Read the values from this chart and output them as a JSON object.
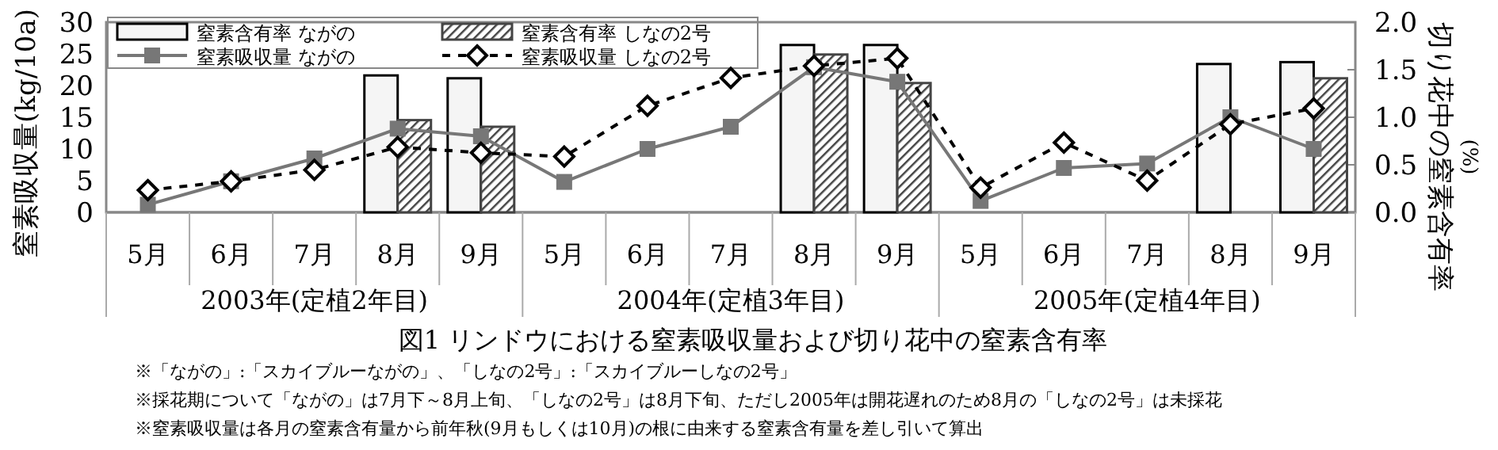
{
  "chart_data": {
    "type": "bar",
    "title": "図1 リンドウにおける窒素吸収量および切り花中の窒素含有率",
    "ylabel": "窒素吸収量(kg/10a)",
    "y2label": "切り花中の窒素含有率\n(%)",
    "categories": [
      "5月",
      "6月",
      "7月",
      "8月",
      "9月",
      "5月",
      "6月",
      "7月",
      "8月",
      "9月",
      "5月",
      "6月",
      "7月",
      "8月",
      "9月"
    ],
    "annotations": [
      "2003年(定植2年目)",
      "2004年(定植3年目)",
      "2005年(定植4年目)",
      "※「ながの」:「スカイブルーながの」、「しなの2号」:「スカイブルーしなの2号」",
      "※採花期について「ながの」は7月下～8月上旬、「しなの2号」は8月下旬、ただし2005年は開花遅れのため8月の「しなの2号」は未採花",
      "※窒素吸収量は各月の窒素含有量から前年秋(9月もしくは10月)の根に由来する窒素含有量を差し引いて算出"
    ],
    "series": [
      {
        "name": "窒素含有率 ながの",
        "axis": "y2",
        "color": "#f5f5f5",
        "values": [
          null,
          null,
          null,
          1.44,
          1.41,
          null,
          null,
          null,
          1.76,
          1.76,
          null,
          null,
          null,
          1.56,
          1.58
        ]
      },
      {
        "name": "窒素含有率 しなの2号",
        "axis": "y2",
        "color": "#444444",
        "values": [
          null,
          null,
          null,
          0.97,
          0.9,
          null,
          null,
          null,
          1.66,
          1.36,
          null,
          null,
          null,
          null,
          1.41
        ]
      },
      {
        "name": "窒素吸収量 ながの",
        "type": "line",
        "color": "#777777",
        "marker": "square",
        "line_style": "solid",
        "values": [
          1.2,
          4.9,
          8.5,
          13.2,
          12.0,
          4.8,
          10,
          13.5,
          22.9,
          20.6,
          1.8,
          7.0,
          7.7,
          15,
          10
        ]
      },
      {
        "name": "窒素吸収量 しなの2号",
        "type": "line",
        "color": "#000000",
        "marker": "diamond",
        "line_style": "dashed",
        "values": [
          3.5,
          4.9,
          6.7,
          10.3,
          9.4,
          8.8,
          16.8,
          21.2,
          23.1,
          24.3,
          3.9,
          11,
          5,
          13.9,
          16.4
        ]
      }
    ],
    "ylim": [
      0,
      30
    ],
    "yticks": [
      0,
      5,
      10,
      15,
      20,
      25,
      30
    ],
    "y2lim": [
      0,
      2
    ],
    "y2ticks": [
      {
        "value": 0,
        "label": "0.0"
      },
      {
        "value": 0.5,
        "label": "0.5"
      },
      {
        "value": 1,
        "label": "1.0"
      },
      {
        "value": 1.5,
        "label": "1.5"
      },
      {
        "value": 2,
        "label": "2.0"
      }
    ],
    "legend": "top",
    "grid": false
  }
}
